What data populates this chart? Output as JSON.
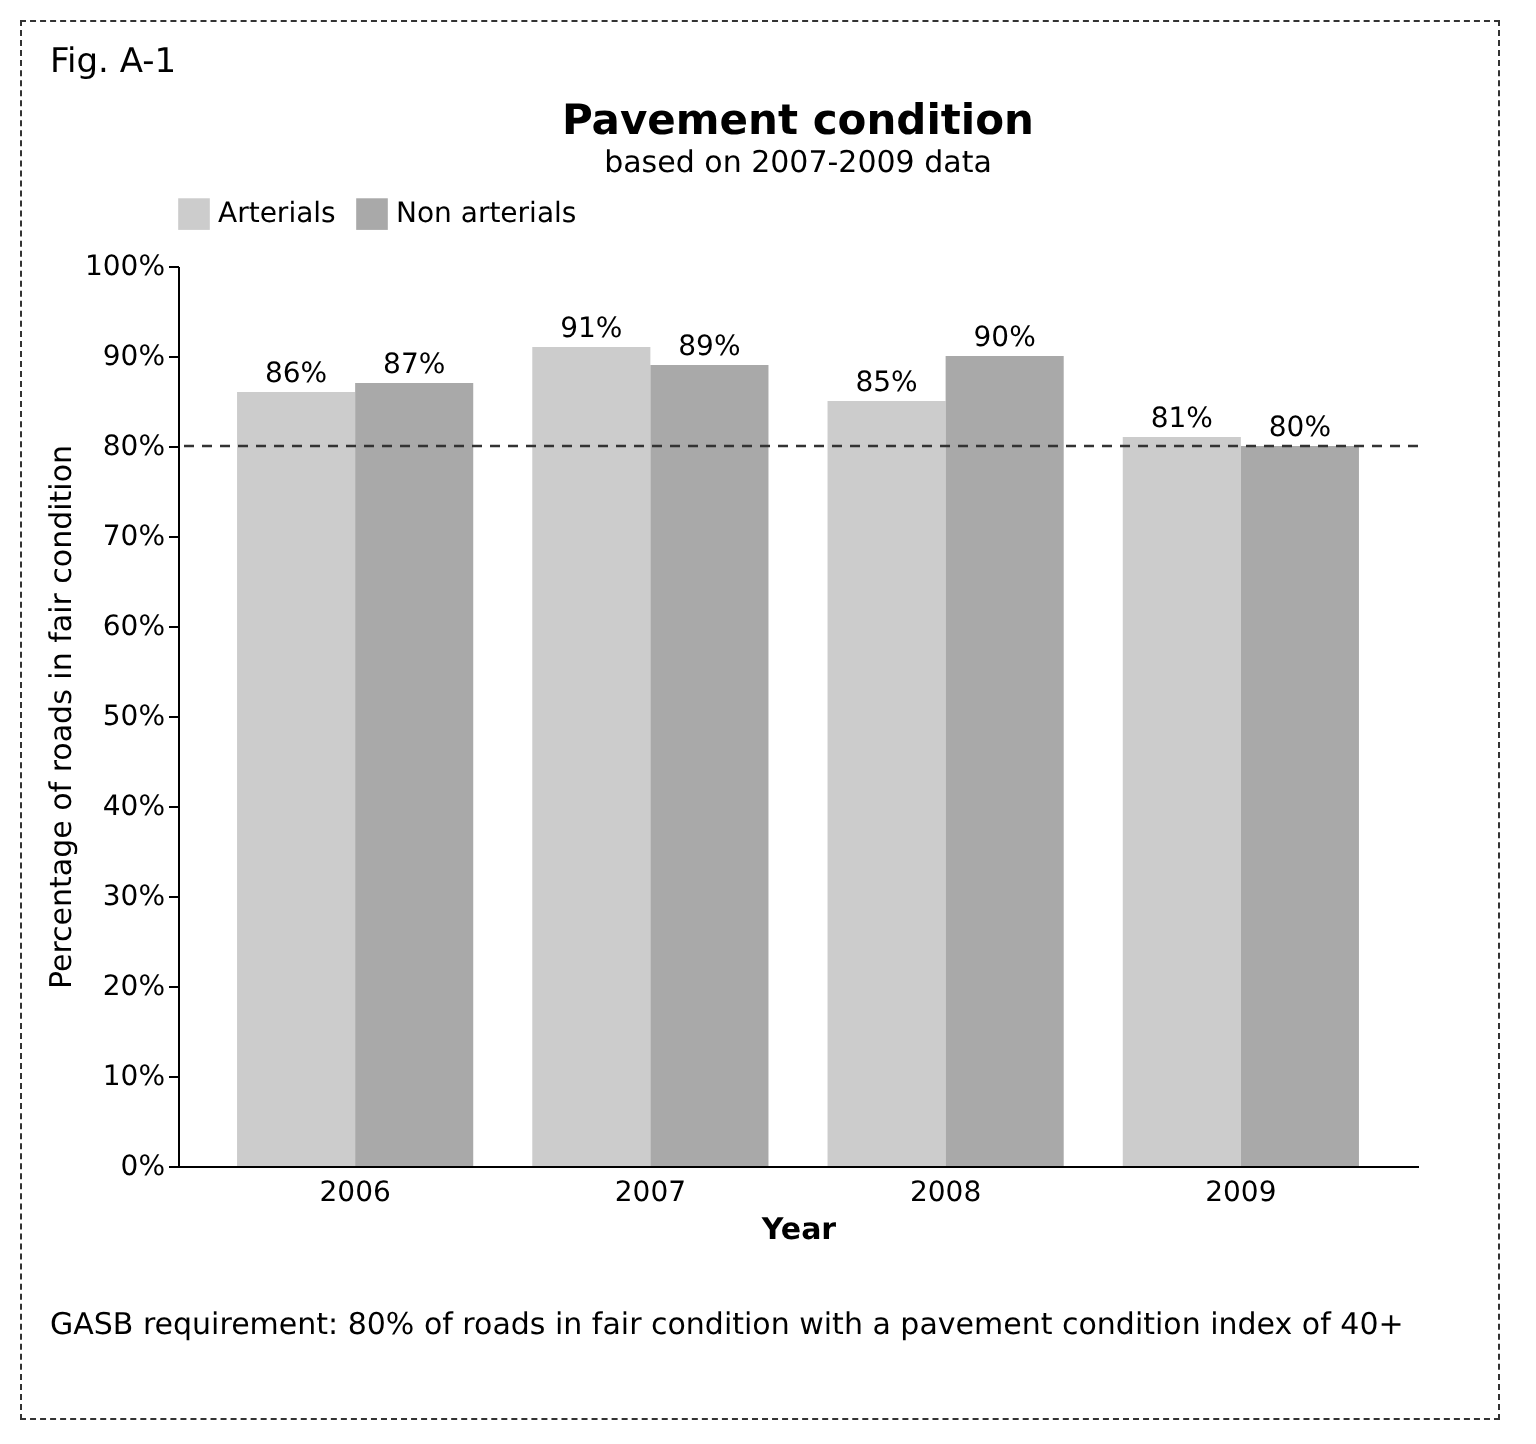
{
  "chart_data": {
    "type": "bar",
    "title": "Pavement condition",
    "subtitle": "based on 2007-2009 data",
    "xlabel": "Year",
    "ylabel": "Percentage of roads in fair condition",
    "categories": [
      "2006",
      "2007",
      "2008",
      "2009"
    ],
    "series": [
      {
        "name": "Arterials",
        "color": "#cccccc",
        "values": [
          86,
          91,
          85,
          81
        ],
        "value_labels": [
          "86%",
          "91%",
          "85%",
          "81%"
        ]
      },
      {
        "name": "Non arterials",
        "color": "#a9a9a9",
        "values": [
          87,
          89,
          90,
          80
        ],
        "value_labels": [
          "87%",
          "89%",
          "90%",
          "80%"
        ]
      }
    ],
    "ylim": [
      0,
      100
    ],
    "yticks": [
      {
        "value": 0,
        "label": "0%"
      },
      {
        "value": 10,
        "label": "10%"
      },
      {
        "value": 20,
        "label": "20%"
      },
      {
        "value": 30,
        "label": "30%"
      },
      {
        "value": 40,
        "label": "40%"
      },
      {
        "value": 50,
        "label": "50%"
      },
      {
        "value": 60,
        "label": "60%"
      },
      {
        "value": 70,
        "label": "70%"
      },
      {
        "value": 80,
        "label": "80%"
      },
      {
        "value": 90,
        "label": "90%"
      },
      {
        "value": 100,
        "label": "100%"
      }
    ],
    "ref_lines": [
      {
        "axis": "y",
        "value": 80,
        "color": "#333333",
        "line_style": "dashed"
      }
    ],
    "legend": "top left",
    "grid": false,
    "annotations": [
      "Fig. A-1",
      "GASB requirement:  80% of roads in fair condition with a pavement condition index of 40+"
    ]
  }
}
